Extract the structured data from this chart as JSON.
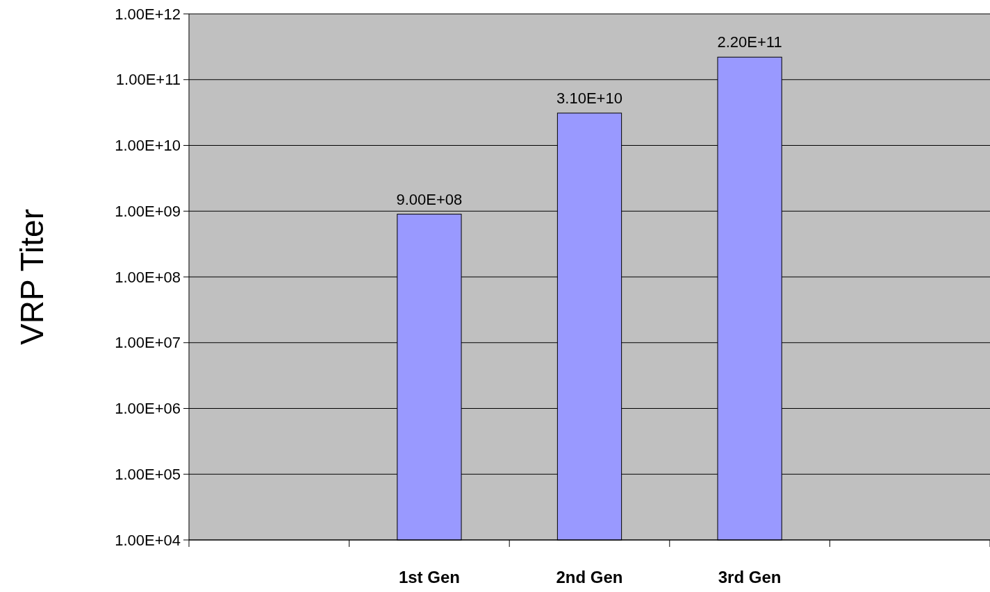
{
  "chart_data": {
    "type": "bar",
    "ylabel": "VRP Titer",
    "categories": [
      null,
      "1st Gen",
      "2nd Gen",
      "3rd Gen",
      null
    ],
    "values": [
      null,
      900000000,
      31000000000,
      220000000000,
      null
    ],
    "value_labels": [
      null,
      "9.00E+08",
      "3.10E+10",
      "2.20E+11",
      null
    ],
    "color": "#9999ff",
    "log": true,
    "grid": "y",
    "ylim": [
      10000,
      1000000000000
    ],
    "yticks": [
      {
        "value": 10000,
        "label": "1.00E+04"
      },
      {
        "value": 100000,
        "label": "1.00E+05"
      },
      {
        "value": 1000000,
        "label": "1.00E+06"
      },
      {
        "value": 10000000,
        "label": "1.00E+07"
      },
      {
        "value": 100000000,
        "label": "1.00E+08"
      },
      {
        "value": 1000000000,
        "label": "1.00E+09"
      },
      {
        "value": 10000000000,
        "label": "1.00E+10"
      },
      {
        "value": 100000000000,
        "label": "1.00E+11"
      },
      {
        "value": 1000000000000,
        "label": "1.00E+12"
      }
    ]
  }
}
